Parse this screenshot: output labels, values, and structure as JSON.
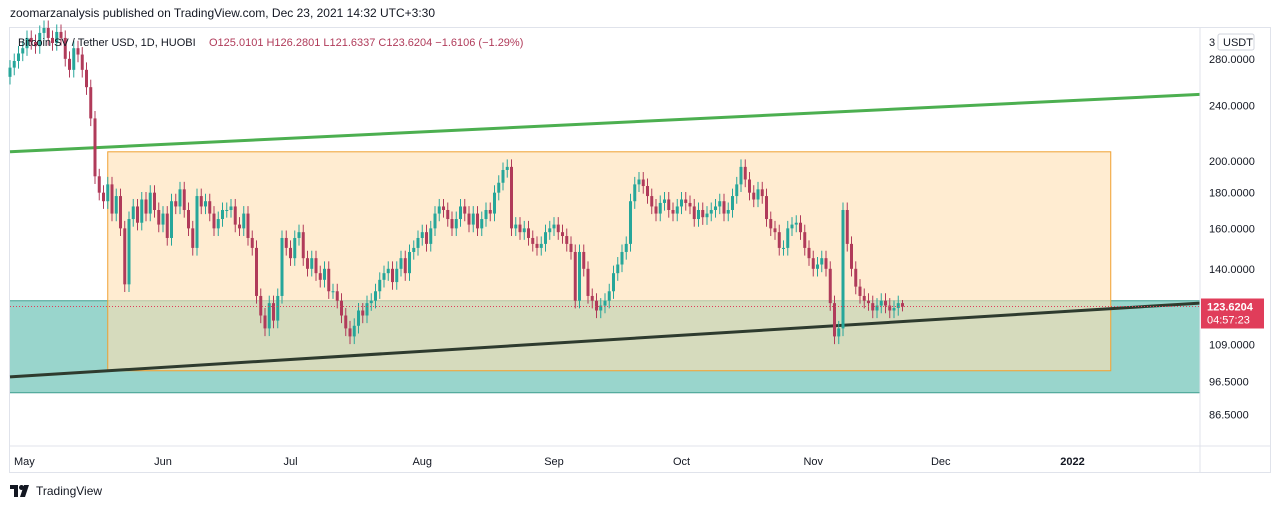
{
  "header": {
    "publisher_line": "zoomarzanalysis published on TradingView.com, Dec 23, 2021 14:32 UTC+3:30"
  },
  "legend": {
    "symbol": "Bitcoin SV / Tether USD, 1D, HUOBI",
    "ohlc_text": "O125.0101  H126.2801  L121.6337  C123.6204  −1.6106 (−1.29%)",
    "currency": "USDT"
  },
  "price_tag": {
    "price": "123.6204",
    "countdown": "04:57:23",
    "color": "#e03d5a"
  },
  "footer": {
    "brand": "TradingView",
    "logo_icon": "tradingview-logo-icon"
  },
  "colors": {
    "up": "#26a69a",
    "down": "#b03b5a",
    "green_line": "#4caf50",
    "dark_line": "#2e3b2e",
    "range_box": "#ffe0b2",
    "support_zone": "#7fcbbf"
  },
  "chart_data": {
    "type": "candlestick",
    "title": "",
    "symbol": "BSVUSDT",
    "exchange": "HUOBI",
    "interval": "1D",
    "scale": "log",
    "ylim": [
      78,
      310
    ],
    "y_ticks": [
      "280.0000",
      "240.0000",
      "200.0000",
      "180.0000",
      "160.0000",
      "140.0000",
      "109.0000",
      "96.5000",
      "86.5000"
    ],
    "x_ticks": [
      "May",
      "Jun",
      "Jul",
      "Aug",
      "Sep",
      "Oct",
      "Nov",
      "Dec",
      "2022"
    ],
    "last": {
      "open": 125.0101,
      "high": 126.2801,
      "low": 121.6337,
      "close": 123.6204,
      "change": -1.6106,
      "change_pct": -1.29
    },
    "annotations": {
      "upper_trendline": {
        "from": [
          "2021-04-26",
          206
        ],
        "to": [
          "2022-01-31",
          249
        ]
      },
      "lower_trendline": {
        "from": [
          "2021-04-26",
          98
        ],
        "to": [
          "2022-01-31",
          125
        ]
      },
      "range_box": {
        "from": "2021-05-19",
        "to": "2022-01-10",
        "top": 206,
        "bottom": 100
      },
      "support_zone": {
        "top": 126,
        "bottom": 93
      }
    },
    "series": [
      {
        "name": "BSVUSDT",
        "start_date": "2021-04-26",
        "close": [
          272,
          278,
          285,
          290,
          300,
          296,
          292,
          305,
          310,
          300,
          295,
          306,
          300,
          280,
          270,
          290,
          284,
          270,
          255,
          230,
          190,
          180,
          175,
          185,
          168,
          178,
          160,
          133,
          165,
          172,
          163,
          176,
          168,
          180,
          170,
          162,
          168,
          155,
          175,
          172,
          182,
          170,
          160,
          150,
          178,
          172,
          175,
          168,
          160,
          165,
          170,
          170,
          172,
          162,
          160,
          168,
          155,
          150,
          128,
          120,
          115,
          125,
          118,
          128,
          155,
          150,
          145,
          155,
          158,
          145,
          140,
          145,
          138,
          135,
          140,
          130,
          130,
          126,
          120,
          115,
          112,
          116,
          122,
          120,
          125,
          126,
          130,
          135,
          138,
          140,
          134,
          140,
          145,
          138,
          148,
          150,
          155,
          158,
          152,
          160,
          168,
          172,
          170,
          165,
          160,
          165,
          172,
          168,
          162,
          168,
          160,
          165,
          170,
          168,
          180,
          186,
          194,
          196,
          160,
          162,
          158,
          160,
          155,
          152,
          150,
          152,
          158,
          160,
          162,
          158,
          156,
          152,
          148,
          126,
          148,
          140,
          128,
          126,
          122,
          124,
          126,
          130,
          138,
          142,
          148,
          152,
          175,
          185,
          188,
          184,
          178,
          172,
          168,
          174,
          176,
          170,
          168,
          172,
          176,
          174,
          172,
          165,
          170,
          166,
          168,
          170,
          172,
          175,
          168,
          170,
          178,
          185,
          196,
          188,
          180,
          176,
          182,
          178,
          165,
          160,
          158,
          150,
          150,
          160,
          162,
          163,
          158,
          150,
          145,
          140,
          142,
          145,
          140,
          125,
          112,
          115,
          170,
          152,
          140,
          132,
          128,
          126,
          125,
          122,
          124,
          126,
          124,
          122,
          123,
          125,
          123.62
        ]
      }
    ]
  }
}
